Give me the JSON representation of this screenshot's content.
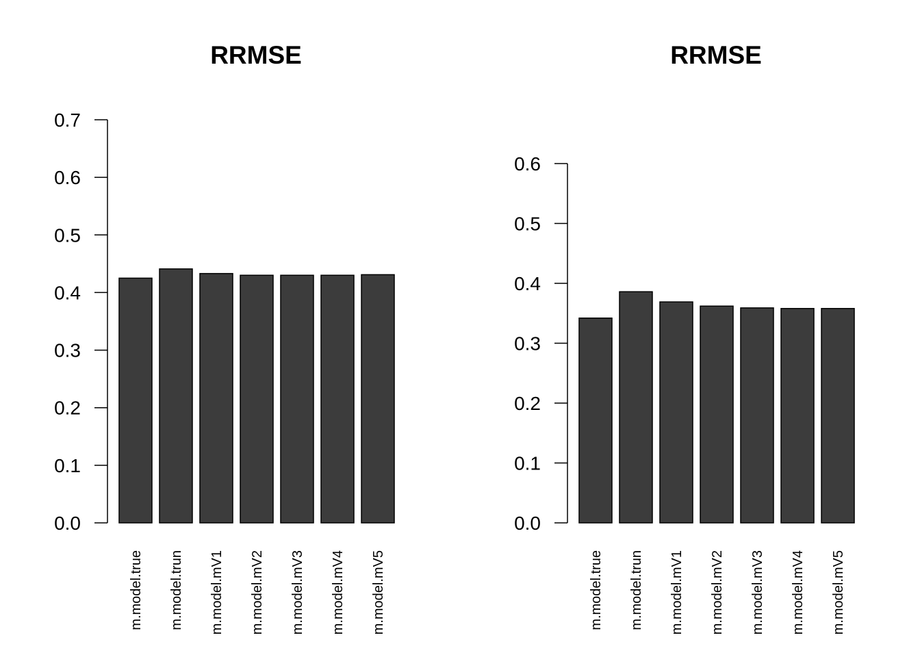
{
  "chart_data": [
    {
      "type": "bar",
      "title": "RRMSE",
      "xlabel": "",
      "ylabel": "",
      "ylim": [
        0,
        0.7
      ],
      "yticks": [
        "0.0",
        "0.1",
        "0.2",
        "0.3",
        "0.4",
        "0.5",
        "0.6",
        "0.7"
      ],
      "categories": [
        "m.model.true",
        "m.model.trun",
        "m.model.mV1",
        "m.model.mV2",
        "m.model.mV3",
        "m.model.mV4",
        "m.model.mV5"
      ],
      "values": [
        0.425,
        0.441,
        0.433,
        0.43,
        0.43,
        0.43,
        0.431
      ],
      "bar_color": "#3c3c3c",
      "grid": false
    },
    {
      "type": "bar",
      "title": "RRMSE",
      "xlabel": "",
      "ylabel": "",
      "ylim": [
        0,
        0.6
      ],
      "yticks": [
        "0.0",
        "0.1",
        "0.2",
        "0.3",
        "0.4",
        "0.5",
        "0.6"
      ],
      "categories": [
        "m.model.true",
        "m.model.trun",
        "m.model.mV1",
        "m.model.mV2",
        "m.model.mV3",
        "m.model.mV4",
        "m.model.mV5"
      ],
      "values": [
        0.342,
        0.386,
        0.369,
        0.362,
        0.359,
        0.358,
        0.358
      ],
      "bar_color": "#3c3c3c",
      "grid": false
    }
  ]
}
